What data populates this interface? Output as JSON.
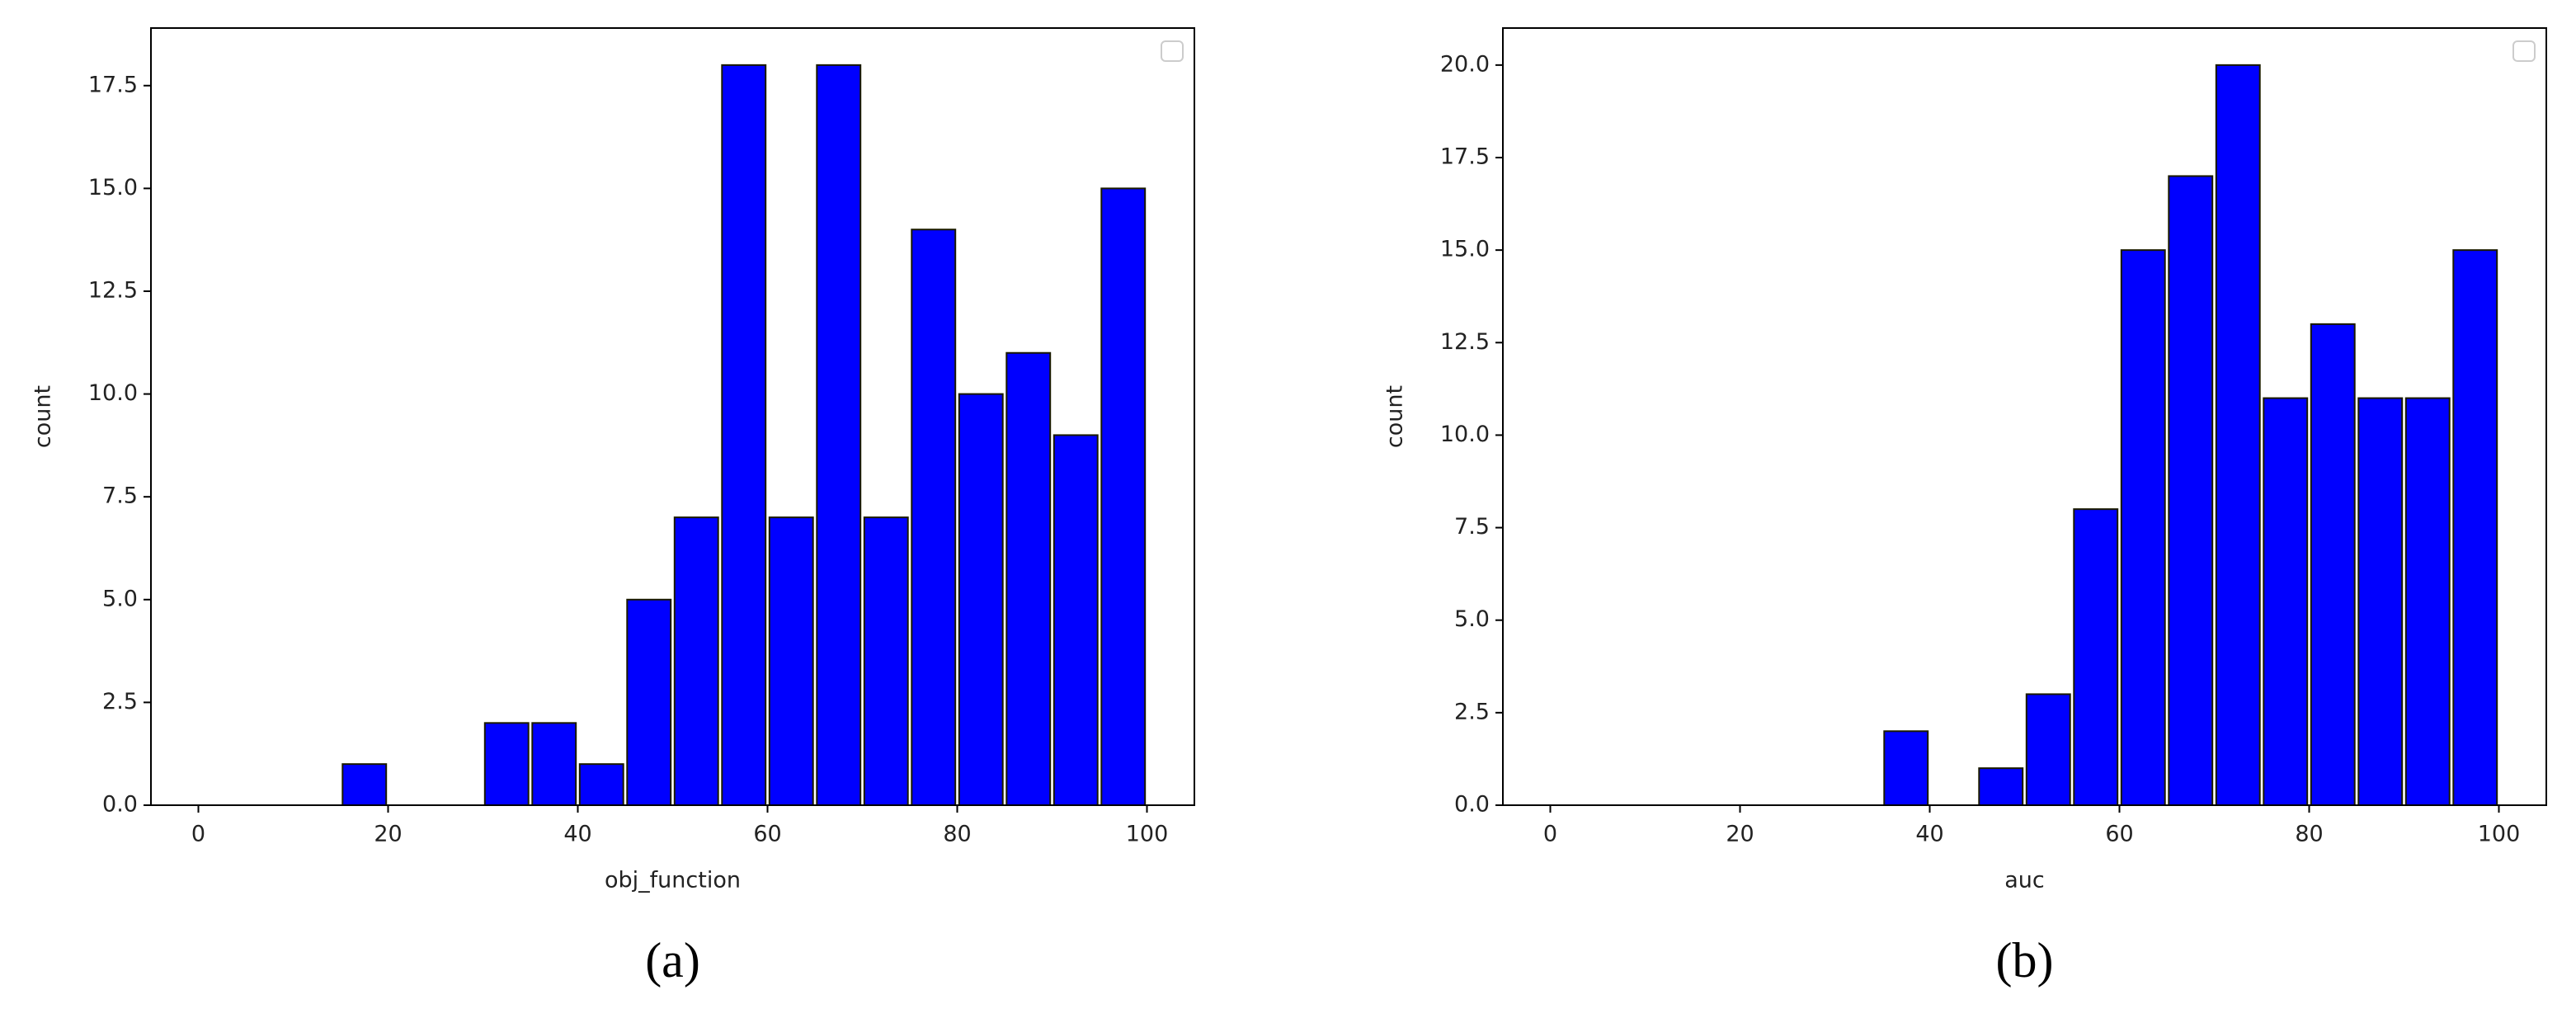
{
  "chart_data": [
    {
      "type": "histogram",
      "caption": "(a)",
      "xlabel": "obj_function",
      "ylabel": "count",
      "bins": [
        0,
        5,
        10,
        15,
        20,
        25,
        30,
        35,
        40,
        45,
        50,
        55,
        60,
        65,
        70,
        75,
        80,
        85,
        90,
        95,
        100
      ],
      "values": [
        0,
        0,
        0,
        1,
        0,
        0,
        2,
        2,
        1,
        5,
        7,
        18,
        7,
        18,
        7,
        14,
        10,
        11,
        9,
        15
      ],
      "color": "#0000ff",
      "edgecolor": "#1a1a00",
      "xlim": [
        -5,
        105
      ],
      "ylim": [
        0,
        18.9
      ],
      "xticks": [
        0,
        20,
        40,
        60,
        80,
        100
      ],
      "yticks": [
        {
          "value": 0,
          "label": "0.0"
        },
        {
          "value": 2.5,
          "label": "2.5"
        },
        {
          "value": 5,
          "label": "5.0"
        },
        {
          "value": 7.5,
          "label": "7.5"
        },
        {
          "value": 10,
          "label": "10.0"
        },
        {
          "value": 12.5,
          "label": "12.5"
        },
        {
          "value": 15,
          "label": "15.0"
        },
        {
          "value": 17.5,
          "label": "17.5"
        }
      ]
    },
    {
      "type": "histogram",
      "caption": "(b)",
      "xlabel": "auc",
      "ylabel": "count",
      "bins": [
        0,
        5,
        10,
        15,
        20,
        25,
        30,
        35,
        40,
        45,
        50,
        55,
        60,
        65,
        70,
        75,
        80,
        85,
        90,
        95,
        100
      ],
      "values": [
        0,
        0,
        0,
        0,
        0,
        0,
        0,
        2,
        0,
        1,
        3,
        8,
        15,
        17,
        20,
        11,
        13,
        11,
        11,
        15
      ],
      "color": "#0000ff",
      "edgecolor": "#1a1a00",
      "xlim": [
        -5,
        105
      ],
      "ylim": [
        0,
        21
      ],
      "xticks": [
        0,
        20,
        40,
        60,
        80,
        100
      ],
      "yticks": [
        {
          "value": 0,
          "label": "0.0"
        },
        {
          "value": 2.5,
          "label": "2.5"
        },
        {
          "value": 5,
          "label": "5.0"
        },
        {
          "value": 7.5,
          "label": "7.5"
        },
        {
          "value": 10,
          "label": "10.0"
        },
        {
          "value": 12.5,
          "label": "12.5"
        },
        {
          "value": 15,
          "label": "15.0"
        },
        {
          "value": 17.5,
          "label": "17.5"
        },
        {
          "value": 20,
          "label": "20.0"
        }
      ]
    }
  ]
}
